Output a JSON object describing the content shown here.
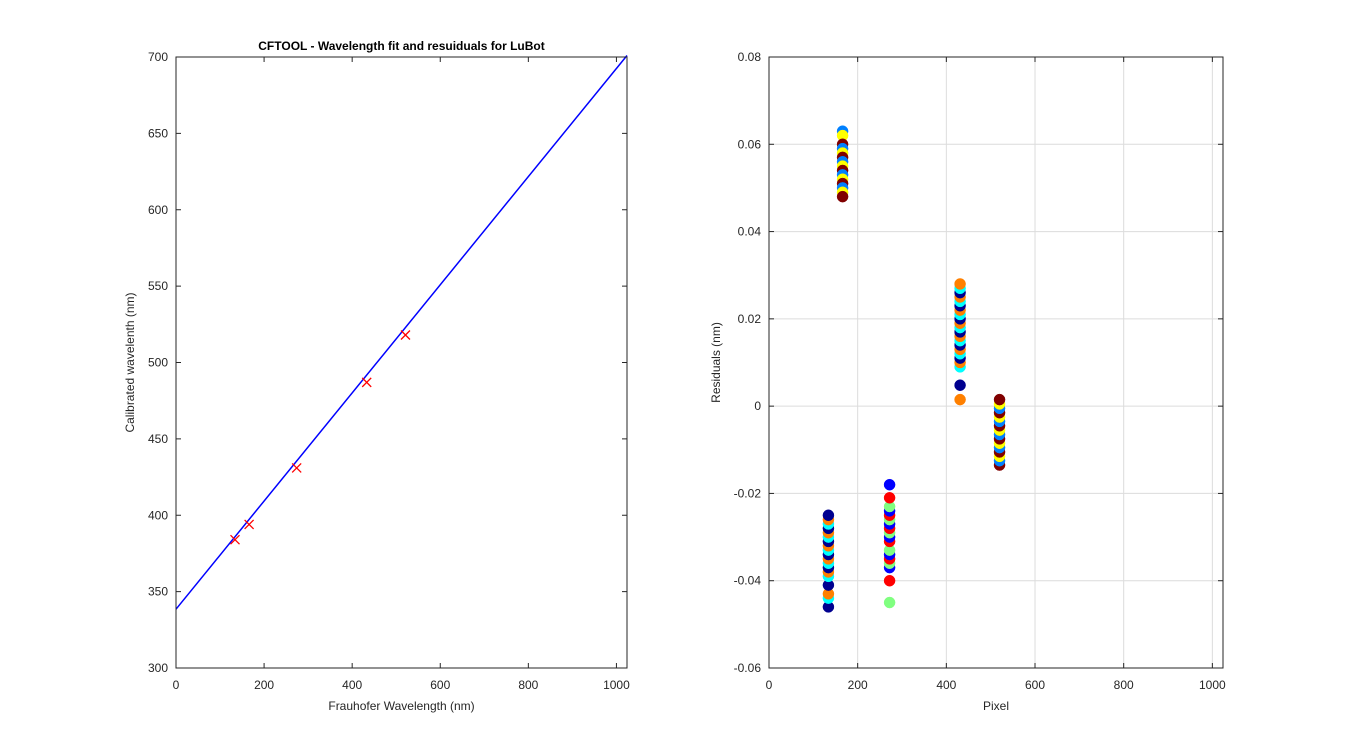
{
  "chart_data": [
    {
      "type": "line",
      "title": "CFTOOL - Wavelength fit and resuiduals for LuBot",
      "xlabel": "Frauhofer Wavelength (nm)",
      "ylabel": "Calibrated wavelenth (nm)",
      "xlim": [
        0,
        1024
      ],
      "ylim": [
        300,
        700
      ],
      "xticks": [
        0,
        200,
        400,
        600,
        800,
        1000
      ],
      "yticks": [
        300,
        350,
        400,
        450,
        500,
        550,
        600,
        650,
        700
      ],
      "grid": false,
      "series": [
        {
          "kind": "line",
          "color": "#0000ff",
          "x": [
            0,
            1024
          ],
          "y": [
            338.5,
            701.0
          ]
        },
        {
          "kind": "marker-x",
          "color": "#ff0000",
          "x": [
            134,
            166,
            274,
            433,
            521
          ],
          "y": [
            384,
            394,
            431,
            487,
            518
          ]
        }
      ]
    },
    {
      "type": "scatter",
      "title": "",
      "xlabel": "Pixel",
      "ylabel": "Residuals  (nm)",
      "xlim": [
        0,
        1024
      ],
      "ylim": [
        -0.06,
        0.08
      ],
      "xticks": [
        0,
        200,
        400,
        600,
        800,
        1000
      ],
      "yticks": [
        -0.06,
        -0.04,
        -0.02,
        0,
        0.02,
        0.04,
        0.06,
        0.08
      ],
      "ytick_labels": [
        "-0.06",
        "-0.04",
        "-0.02",
        "0",
        "0.02",
        "0.04",
        "0.06",
        "0.08"
      ],
      "grid": true,
      "colormap": [
        "#00008f",
        "#0000ff",
        "#0080ff",
        "#00ffff",
        "#80ff80",
        "#ffff00",
        "#ff8000",
        "#ff0000",
        "#800000"
      ],
      "groups": [
        {
          "x": 134,
          "y": [
            -0.046,
            -0.044,
            -0.043,
            -0.041,
            -0.039,
            -0.038,
            -0.037,
            -0.036,
            -0.035,
            -0.034,
            -0.033,
            -0.032,
            -0.031,
            -0.03,
            -0.029,
            -0.028,
            -0.027,
            -0.026,
            -0.025
          ]
        },
        {
          "x": 166,
          "y": [
            0.063,
            0.062,
            0.06,
            0.059,
            0.058,
            0.057,
            0.056,
            0.055,
            0.054,
            0.053,
            0.052,
            0.051,
            0.05,
            0.049,
            0.048
          ]
        },
        {
          "x": 272,
          "y": [
            -0.045,
            -0.04,
            -0.037,
            -0.036,
            -0.035,
            -0.034,
            -0.033,
            -0.031,
            -0.03,
            -0.029,
            -0.028,
            -0.027,
            -0.026,
            -0.025,
            -0.024,
            -0.023,
            -0.021,
            -0.018
          ]
        },
        {
          "x": 431,
          "y": [
            0.0015,
            0.0048,
            0.009,
            0.01,
            0.011,
            0.012,
            0.013,
            0.014,
            0.015,
            0.016,
            0.017,
            0.018,
            0.019,
            0.02,
            0.021,
            0.022,
            0.023,
            0.024,
            0.025,
            0.026,
            0.027,
            0.028
          ]
        },
        {
          "x": 520,
          "y": [
            -0.0135,
            -0.0125,
            -0.0115,
            -0.0105,
            -0.0095,
            -0.0085,
            -0.0075,
            -0.0065,
            -0.0055,
            -0.0045,
            -0.0035,
            -0.0025,
            -0.0015,
            -0.0005,
            0.0005,
            0.0015
          ]
        }
      ]
    }
  ]
}
